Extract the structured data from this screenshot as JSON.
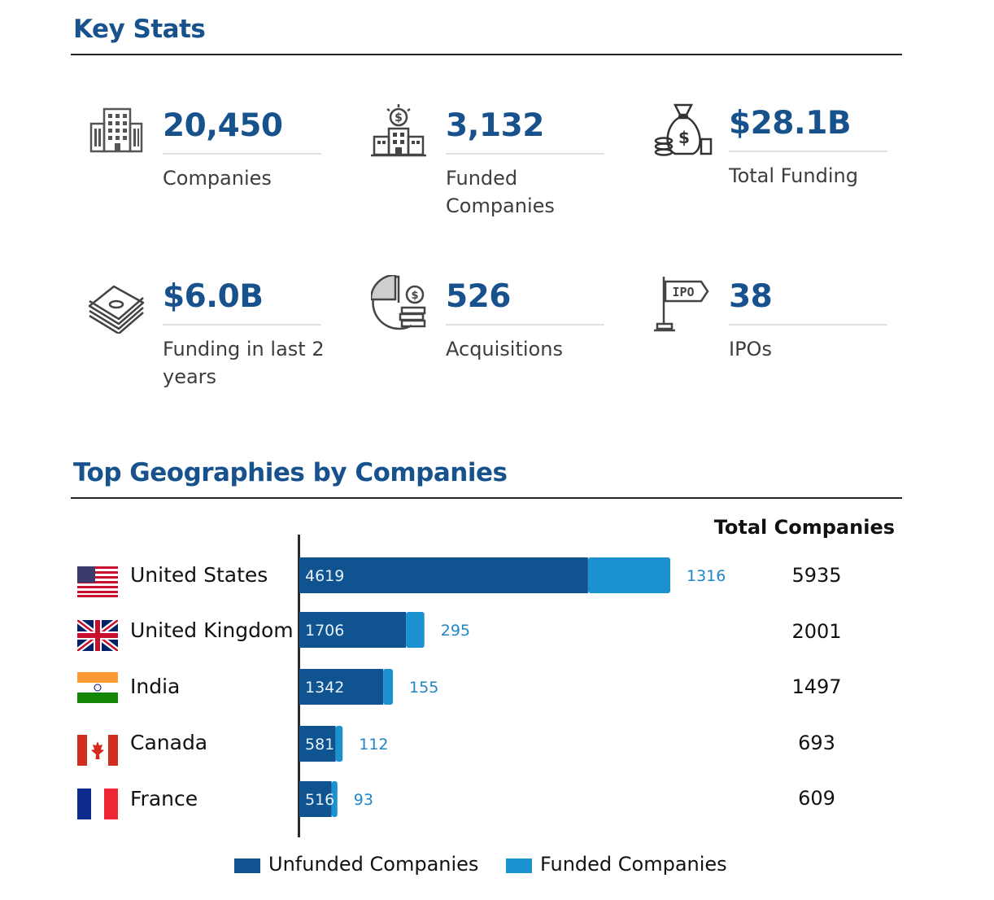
{
  "key_stats": {
    "title": "Key Stats",
    "items": [
      {
        "icon": "office-building-icon",
        "value": "20,450",
        "label": "Companies"
      },
      {
        "icon": "funded-building-icon",
        "value": "3,132",
        "label": "Funded Companies"
      },
      {
        "icon": "money-bag-icon",
        "value": "$28.1B",
        "label": "Total Funding"
      },
      {
        "icon": "cash-stack-icon",
        "value": "$6.0B",
        "label": "Funding in last 2 years"
      },
      {
        "icon": "pie-coins-icon",
        "value": "526",
        "label": "Acquisitions"
      },
      {
        "icon": "ipo-signpost-icon",
        "value": "38",
        "label": "IPOs"
      }
    ]
  },
  "geographies": {
    "title": "Top Geographies by Companies",
    "total_header": "Total Companies",
    "countries": [
      {
        "name": "United States",
        "flag": "us-flag-icon",
        "unfunded": "4619",
        "funded": "1316",
        "total": "5935"
      },
      {
        "name": "United Kingdom",
        "flag": "uk-flag-icon",
        "unfunded": "1706",
        "funded": "295",
        "total": "2001"
      },
      {
        "name": "India",
        "flag": "india-flag-icon",
        "unfunded": "1342",
        "funded": "155",
        "total": "1497"
      },
      {
        "name": "Canada",
        "flag": "canada-flag-icon",
        "unfunded": "581",
        "funded": "112",
        "total": "693"
      },
      {
        "name": "France",
        "flag": "france-flag-icon",
        "unfunded": "516",
        "funded": "93",
        "total": "609"
      }
    ],
    "legend": {
      "unfunded": "Unfunded Companies",
      "funded": "Funded Companies"
    },
    "colors": {
      "unfunded": "#0f5490",
      "funded": "#1b91d0",
      "title": "#17528c"
    }
  },
  "chart_data": {
    "type": "bar",
    "orientation": "horizontal",
    "stacked": true,
    "categories": [
      "United States",
      "United Kingdom",
      "India",
      "Canada",
      "France"
    ],
    "series": [
      {
        "name": "Unfunded Companies",
        "values": [
          4619,
          1706,
          1342,
          581,
          516
        ]
      },
      {
        "name": "Funded Companies",
        "values": [
          1316,
          295,
          155,
          112,
          93
        ]
      }
    ],
    "totals": [
      5935,
      2001,
      1497,
      693,
      609
    ],
    "title": "Top Geographies by Companies",
    "legend": "bottom",
    "grid": false
  }
}
